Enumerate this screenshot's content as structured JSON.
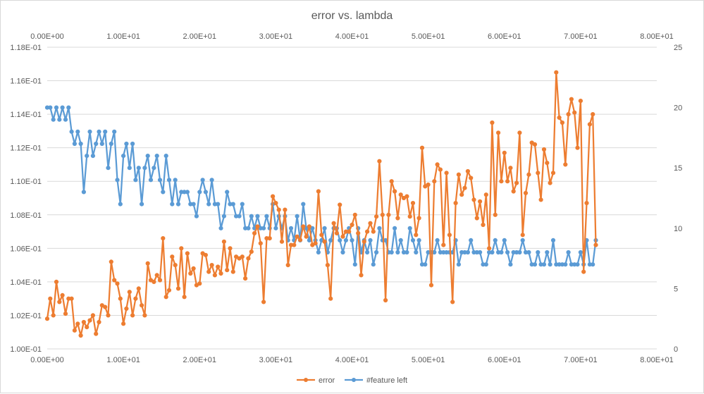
{
  "chart_data": {
    "type": "line",
    "title": "error vs. lambda",
    "x_axis": {
      "range": [
        0,
        80
      ],
      "ticks": [
        "0.00E+00",
        "1.00E+01",
        "2.00E+01",
        "3.00E+01",
        "4.00E+01",
        "5.00E+01",
        "6.00E+01",
        "7.00E+01",
        "8.00E+01"
      ],
      "shown_top_and_bottom": true
    },
    "y_axis_left": {
      "range": [
        0.1,
        0.118
      ],
      "ticks": [
        "1.00E-01",
        "1.02E-01",
        "1.04E-01",
        "1.06E-01",
        "1.08E-01",
        "1.10E-01",
        "1.12E-01",
        "1.14E-01",
        "1.16E-01",
        "1.18E-01"
      ]
    },
    "y_axis_right": {
      "range": [
        0,
        25
      ],
      "ticks": [
        "0",
        "5",
        "10",
        "15",
        "20",
        "25"
      ]
    },
    "grid": "horizontal",
    "legend_position": "bottom",
    "series": [
      {
        "name": "error",
        "color": "#ed7d31",
        "axis": "left",
        "x": [
          0.0,
          0.4,
          0.8,
          1.2,
          1.6,
          2.0,
          2.4,
          2.8,
          3.2,
          3.6,
          4.0,
          4.4,
          4.8,
          5.2,
          5.6,
          6.0,
          6.4,
          6.8,
          7.2,
          7.6,
          8.0,
          8.4,
          8.8,
          9.2,
          9.6,
          10.0,
          10.4,
          10.8,
          11.2,
          11.6,
          12.0,
          12.4,
          12.8,
          13.2,
          13.6,
          14.0,
          14.4,
          14.8,
          15.2,
          15.6,
          16.0,
          16.4,
          16.8,
          17.2,
          17.6,
          18.0,
          18.4,
          18.8,
          19.2,
          19.6,
          20.0,
          20.4,
          20.8,
          21.2,
          21.6,
          22.0,
          22.4,
          22.8,
          23.2,
          23.6,
          24.0,
          24.4,
          24.8,
          25.2,
          25.6,
          26.0,
          26.4,
          26.8,
          27.2,
          27.6,
          28.0,
          28.4,
          28.8,
          29.2,
          29.6,
          30.0,
          30.4,
          30.8,
          31.2,
          31.6,
          32.0,
          32.4,
          32.8,
          33.2,
          33.6,
          34.0,
          34.4,
          34.8,
          35.2,
          35.6,
          36.0,
          36.4,
          36.8,
          37.2,
          37.6,
          38.0,
          38.4,
          38.8,
          39.2,
          39.6,
          40.0,
          40.4,
          40.8,
          41.2,
          41.6,
          42.0,
          42.4,
          42.8,
          43.2,
          43.6,
          44.0,
          44.4,
          44.8,
          45.2,
          45.6,
          46.0,
          46.4,
          46.8,
          47.2,
          47.6,
          48.0,
          48.4,
          48.8,
          49.2,
          49.6,
          50.0,
          50.4,
          50.8,
          51.2,
          51.6,
          52.0,
          52.4,
          52.8,
          53.2,
          53.6,
          54.0,
          54.4,
          54.8,
          55.2,
          55.6,
          56.0,
          56.4,
          56.8,
          57.2,
          57.6,
          58.0,
          58.4,
          58.8,
          59.2,
          59.6,
          60.0,
          60.4,
          60.8,
          61.2,
          61.6,
          62.0,
          62.4,
          62.8,
          63.2,
          63.6,
          64.0,
          64.4,
          64.8,
          65.2,
          65.6,
          66.0,
          66.4,
          66.8,
          67.2,
          67.6,
          68.0,
          68.4,
          68.8,
          69.2,
          69.6,
          70.0,
          70.4,
          70.8,
          71.2,
          71.6,
          72.0
        ],
        "y": [
          0.1018,
          0.103,
          0.102,
          0.104,
          0.1028,
          0.1032,
          0.1021,
          0.103,
          0.103,
          0.1011,
          0.1015,
          0.1008,
          0.1016,
          0.1013,
          0.1017,
          0.102,
          0.1009,
          0.1016,
          0.1026,
          0.1025,
          0.102,
          0.1052,
          0.1041,
          0.1039,
          0.103,
          0.1015,
          0.1024,
          0.1034,
          0.102,
          0.103,
          0.1036,
          0.1026,
          0.102,
          0.1051,
          0.1041,
          0.104,
          0.1044,
          0.1041,
          0.1066,
          0.1031,
          0.1035,
          0.1055,
          0.105,
          0.1036,
          0.106,
          0.1031,
          0.1057,
          0.1045,
          0.1048,
          0.1038,
          0.1039,
          0.1057,
          0.1056,
          0.1046,
          0.105,
          0.1044,
          0.1049,
          0.1045,
          0.1064,
          0.1047,
          0.106,
          0.1046,
          0.1055,
          0.1054,
          0.1055,
          0.1042,
          0.1054,
          0.1058,
          0.1069,
          0.1073,
          0.1063,
          0.1028,
          0.1066,
          0.1066,
          0.1091,
          0.1087,
          0.1083,
          0.1064,
          0.1083,
          0.105,
          0.1062,
          0.1062,
          0.1067,
          0.1065,
          0.1073,
          0.1067,
          0.1073,
          0.1062,
          0.1063,
          0.1094,
          0.1068,
          0.1064,
          0.105,
          0.103,
          0.1075,
          0.1069,
          0.1086,
          0.1067,
          0.107,
          0.107,
          0.1074,
          0.108,
          0.1069,
          0.1044,
          0.1064,
          0.107,
          0.1075,
          0.107,
          0.1079,
          0.1112,
          0.108,
          0.1029,
          0.108,
          0.11,
          0.1094,
          0.1078,
          0.1092,
          0.109,
          0.1091,
          0.1079,
          0.1087,
          0.1068,
          0.1078,
          0.112,
          0.1097,
          0.1098,
          0.1038,
          0.11,
          0.111,
          0.1107,
          0.1062,
          0.1105,
          0.1068,
          0.1028,
          0.1087,
          0.1104,
          0.1092,
          0.1096,
          0.1106,
          0.1102,
          0.1089,
          0.1078,
          0.1088,
          0.1074,
          0.1092,
          0.106,
          0.1135,
          0.108,
          0.1129,
          0.11,
          0.1117,
          0.11,
          0.1108,
          0.1094,
          0.1099,
          0.1129,
          0.1068,
          0.1093,
          0.1104,
          0.1123,
          0.1122,
          0.1105,
          0.1089,
          0.1119,
          0.1111,
          0.1099,
          0.1105,
          0.1165,
          0.1138,
          0.1135,
          0.111,
          0.114,
          0.1149,
          0.1141,
          0.112,
          0.1148,
          0.1046,
          0.1087,
          0.1134,
          0.114,
          0.1062
        ]
      },
      {
        "name": "#feature left",
        "color": "#5b9bd5",
        "axis": "right",
        "x": [
          0.0,
          0.4,
          0.8,
          1.2,
          1.6,
          2.0,
          2.4,
          2.8,
          3.2,
          3.6,
          4.0,
          4.4,
          4.8,
          5.2,
          5.6,
          6.0,
          6.4,
          6.8,
          7.2,
          7.6,
          8.0,
          8.4,
          8.8,
          9.2,
          9.6,
          10.0,
          10.4,
          10.8,
          11.2,
          11.6,
          12.0,
          12.4,
          12.8,
          13.2,
          13.6,
          14.0,
          14.4,
          14.8,
          15.2,
          15.6,
          16.0,
          16.4,
          16.8,
          17.2,
          17.6,
          18.0,
          18.4,
          18.8,
          19.2,
          19.6,
          20.0,
          20.4,
          20.8,
          21.2,
          21.6,
          22.0,
          22.4,
          22.8,
          23.2,
          23.6,
          24.0,
          24.4,
          24.8,
          25.2,
          25.6,
          26.0,
          26.4,
          26.8,
          27.2,
          27.6,
          28.0,
          28.4,
          28.8,
          29.2,
          29.6,
          30.0,
          30.4,
          30.8,
          31.2,
          31.6,
          32.0,
          32.4,
          32.8,
          33.2,
          33.6,
          34.0,
          34.4,
          34.8,
          35.2,
          35.6,
          36.0,
          36.4,
          36.8,
          37.2,
          37.6,
          38.0,
          38.4,
          38.8,
          39.2,
          39.6,
          40.0,
          40.4,
          40.8,
          41.2,
          41.6,
          42.0,
          42.4,
          42.8,
          43.2,
          43.6,
          44.0,
          44.4,
          44.8,
          45.2,
          45.6,
          46.0,
          46.4,
          46.8,
          47.2,
          47.6,
          48.0,
          48.4,
          48.8,
          49.2,
          49.6,
          50.0,
          50.4,
          50.8,
          51.2,
          51.6,
          52.0,
          52.4,
          52.8,
          53.2,
          53.6,
          54.0,
          54.4,
          54.8,
          55.2,
          55.6,
          56.0,
          56.4,
          56.8,
          57.2,
          57.6,
          58.0,
          58.4,
          58.8,
          59.2,
          59.6,
          60.0,
          60.4,
          60.8,
          61.2,
          61.6,
          62.0,
          62.4,
          62.8,
          63.2,
          63.6,
          64.0,
          64.4,
          64.8,
          65.2,
          65.6,
          66.0,
          66.4,
          66.8,
          67.2,
          67.6,
          68.0,
          68.4,
          68.8,
          69.2,
          69.6,
          70.0,
          70.4,
          70.8,
          71.2,
          71.6,
          72.0
        ],
        "y": [
          20,
          20,
          19,
          20,
          19,
          20,
          19,
          20,
          18,
          17,
          18,
          17,
          13,
          16,
          18,
          16,
          17,
          18,
          17,
          18,
          15,
          17,
          18,
          14,
          12,
          16,
          17,
          15,
          17,
          14,
          15,
          12,
          15,
          16,
          14,
          15,
          16,
          14,
          13,
          16,
          14,
          12,
          14,
          12,
          13,
          13,
          13,
          12,
          12,
          11,
          13,
          14,
          13,
          12,
          14,
          12,
          12,
          10,
          11,
          13,
          12,
          12,
          11,
          11,
          12,
          10,
          10,
          11,
          10,
          11,
          10,
          10,
          11,
          10,
          12,
          10,
          11,
          10,
          11,
          9,
          10,
          9,
          11,
          9,
          12,
          10,
          9,
          10,
          9,
          8,
          9,
          10,
          8,
          9,
          10,
          10,
          9,
          8,
          9,
          10,
          9,
          7,
          10,
          8,
          9,
          8,
          9,
          7,
          8,
          10,
          9,
          9,
          8,
          8,
          10,
          8,
          9,
          8,
          8,
          10,
          9,
          8,
          9,
          7,
          7,
          8,
          8,
          8,
          9,
          8,
          8,
          8,
          8,
          8,
          9,
          7,
          8,
          8,
          8,
          9,
          8,
          8,
          8,
          7,
          7,
          8,
          8,
          9,
          8,
          8,
          9,
          8,
          7,
          8,
          8,
          8,
          9,
          8,
          8,
          7,
          7,
          8,
          7,
          7,
          8,
          7,
          9,
          7,
          7,
          7,
          7,
          8,
          7,
          7,
          7,
          8,
          7,
          9,
          7,
          7,
          9
        ]
      }
    ]
  }
}
